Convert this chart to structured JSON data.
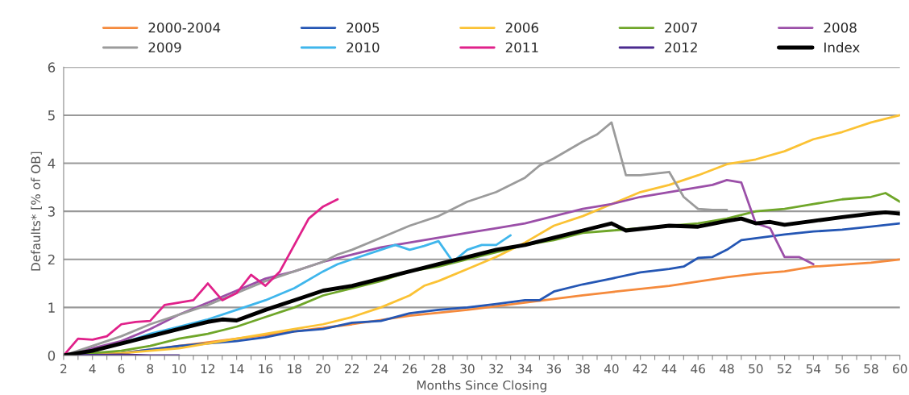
{
  "chart_data": {
    "type": "line",
    "xlabel": "Months Since Closing",
    "ylabel": "Defaults* [% of OB]",
    "xlim": [
      2,
      60
    ],
    "ylim": [
      0,
      6
    ],
    "yticks": [
      0,
      1,
      2,
      3,
      4,
      5,
      6
    ],
    "xticks": [
      2,
      {
        "value": 3,
        "label": null
      },
      4,
      {
        "value": 5,
        "label": null
      },
      6,
      {
        "value": 7,
        "label": null
      },
      8,
      {
        "value": 9,
        "label": null
      },
      10,
      {
        "value": 11,
        "label": null
      },
      12,
      {
        "value": 13,
        "label": null
      },
      14,
      {
        "value": 15,
        "label": null
      },
      16,
      {
        "value": 17,
        "label": null
      },
      18,
      {
        "value": 19,
        "label": null
      },
      20,
      {
        "value": 21,
        "label": null
      },
      22,
      {
        "value": 23,
        "label": null
      },
      24,
      {
        "value": 25,
        "label": null
      },
      26,
      {
        "value": 27,
        "label": null
      },
      28,
      {
        "value": 29,
        "label": null
      },
      30,
      {
        "value": 31,
        "label": null
      },
      32,
      {
        "value": 33,
        "label": null
      },
      34,
      {
        "value": 35,
        "label": null
      },
      36,
      {
        "value": 37,
        "label": null
      },
      38,
      {
        "value": 39,
        "label": null
      },
      40,
      {
        "value": 41,
        "label": null
      },
      42,
      {
        "value": 43,
        "label": null
      },
      44,
      {
        "value": 45,
        "label": null
      },
      46,
      {
        "value": 47,
        "label": null
      },
      48,
      {
        "value": 49,
        "label": null
      },
      50,
      {
        "value": 51,
        "label": null
      },
      52,
      {
        "value": 53,
        "label": null
      },
      54,
      {
        "value": 55,
        "label": null
      },
      56,
      {
        "value": 57,
        "label": null
      },
      58,
      {
        "value": 59,
        "label": null
      },
      60
    ],
    "grid": "y",
    "legend": "top",
    "marker": "none",
    "line_style": "solid",
    "series": [
      {
        "name": "2000-2004",
        "color": "#f58a3c",
        "x": [
          2,
          6,
          10,
          14,
          18,
          22,
          26,
          30,
          34,
          38,
          40,
          44,
          48,
          50,
          52,
          54,
          58,
          60
        ],
        "values": [
          0,
          0.05,
          0.2,
          0.35,
          0.5,
          0.65,
          0.83,
          0.95,
          1.1,
          1.25,
          1.32,
          1.45,
          1.63,
          1.7,
          1.75,
          1.85,
          1.93,
          2.0
        ]
      },
      {
        "name": "2005",
        "color": "#2456b4",
        "x": [
          2,
          6,
          10,
          14,
          16,
          18,
          20,
          22,
          24,
          26,
          28,
          30,
          32,
          34,
          35,
          36,
          38,
          40,
          42,
          44,
          45,
          46,
          47,
          48,
          49,
          52,
          54,
          56,
          58,
          60
        ],
        "values": [
          0,
          0.05,
          0.2,
          0.3,
          0.38,
          0.5,
          0.55,
          0.68,
          0.72,
          0.88,
          0.95,
          1.0,
          1.07,
          1.15,
          1.15,
          1.33,
          1.48,
          1.6,
          1.73,
          1.8,
          1.85,
          2.03,
          2.05,
          2.2,
          2.4,
          2.52,
          2.58,
          2.62,
          2.68,
          2.75
        ]
      },
      {
        "name": "2006",
        "color": "#fbc234",
        "x": [
          2,
          6,
          10,
          14,
          18,
          20,
          22,
          24,
          26,
          27,
          28,
          30,
          32,
          34,
          36,
          38,
          40,
          42,
          44,
          46,
          48,
          50,
          52,
          54,
          56,
          58,
          60
        ],
        "values": [
          0,
          0.05,
          0.15,
          0.35,
          0.55,
          0.65,
          0.8,
          1.0,
          1.25,
          1.45,
          1.55,
          1.8,
          2.05,
          2.35,
          2.7,
          2.9,
          3.15,
          3.4,
          3.55,
          3.75,
          3.98,
          4.08,
          4.25,
          4.5,
          4.65,
          4.85,
          5.0
        ]
      },
      {
        "name": "2007",
        "color": "#6fa629",
        "x": [
          2,
          6,
          8,
          10,
          12,
          14,
          16,
          18,
          20,
          22,
          24,
          26,
          28,
          30,
          32,
          34,
          36,
          38,
          40,
          42,
          44,
          46,
          48,
          50,
          52,
          54,
          56,
          58,
          59,
          60
        ],
        "values": [
          0,
          0.1,
          0.2,
          0.35,
          0.45,
          0.6,
          0.8,
          1.0,
          1.25,
          1.4,
          1.55,
          1.75,
          1.85,
          2.0,
          2.15,
          2.3,
          2.4,
          2.55,
          2.6,
          2.65,
          2.7,
          2.75,
          2.85,
          3.0,
          3.05,
          3.15,
          3.25,
          3.3,
          3.38,
          3.2
        ]
      },
      {
        "name": "2008",
        "color": "#9b4fa8",
        "x": [
          2,
          4,
          6,
          8,
          10,
          12,
          14,
          16,
          18,
          20,
          22,
          24,
          26,
          28,
          30,
          32,
          34,
          36,
          38,
          40,
          42,
          44,
          46,
          47,
          48,
          49,
          50,
          51,
          52,
          53,
          54
        ],
        "values": [
          0,
          0.15,
          0.3,
          0.55,
          0.85,
          1.1,
          1.35,
          1.6,
          1.75,
          1.95,
          2.1,
          2.25,
          2.35,
          2.45,
          2.55,
          2.65,
          2.75,
          2.9,
          3.05,
          3.15,
          3.3,
          3.4,
          3.5,
          3.55,
          3.65,
          3.6,
          2.75,
          2.65,
          2.05,
          2.05,
          1.9
        ]
      },
      {
        "name": "2009",
        "color": "#9b9b9b",
        "x": [
          2,
          4,
          6,
          8,
          10,
          12,
          14,
          16,
          18,
          20,
          21,
          22,
          24,
          26,
          28,
          30,
          32,
          34,
          35,
          36,
          38,
          39,
          40,
          41,
          42,
          44,
          45,
          46,
          47,
          48
        ],
        "values": [
          0,
          0.2,
          0.4,
          0.65,
          0.85,
          1.05,
          1.3,
          1.55,
          1.75,
          1.95,
          2.1,
          2.2,
          2.45,
          2.7,
          2.9,
          3.2,
          3.4,
          3.7,
          3.95,
          4.1,
          4.45,
          4.6,
          4.85,
          3.75,
          3.75,
          3.82,
          3.3,
          3.05,
          3.03,
          3.03
        ]
      },
      {
        "name": "2010",
        "color": "#3fb6ec",
        "x": [
          2,
          4,
          6,
          8,
          10,
          12,
          14,
          16,
          18,
          20,
          21,
          22,
          24,
          25,
          26,
          27,
          28,
          29,
          30,
          31,
          32,
          33
        ],
        "values": [
          0,
          0.1,
          0.25,
          0.45,
          0.6,
          0.75,
          0.95,
          1.15,
          1.4,
          1.75,
          1.9,
          2.0,
          2.2,
          2.3,
          2.2,
          2.28,
          2.38,
          1.95,
          2.2,
          2.3,
          2.3,
          2.5
        ]
      },
      {
        "name": "2011",
        "color": "#e0218a",
        "x": [
          2,
          3,
          4,
          5,
          6,
          7,
          8,
          9,
          10,
          11,
          12,
          13,
          14,
          15,
          16,
          17,
          18,
          19,
          20,
          21
        ],
        "values": [
          0,
          0.35,
          0.33,
          0.4,
          0.65,
          0.7,
          0.72,
          1.05,
          1.1,
          1.15,
          1.5,
          1.15,
          1.3,
          1.68,
          1.45,
          1.75,
          2.3,
          2.85,
          3.1,
          3.25
        ]
      },
      {
        "name": "2012",
        "color": "#4b2a8f",
        "x": [
          2,
          6,
          8,
          10
        ],
        "values": [
          0,
          0.02,
          0,
          0
        ]
      },
      {
        "name": "Index",
        "color": "#000000",
        "x": [
          2,
          4,
          6,
          8,
          10,
          12,
          13,
          14,
          16,
          18,
          20,
          22,
          24,
          26,
          28,
          30,
          32,
          34,
          36,
          38,
          40,
          41,
          44,
          46,
          48,
          49,
          50,
          51,
          52,
          54,
          56,
          58,
          59,
          60
        ],
        "values": [
          0,
          0.1,
          0.25,
          0.4,
          0.55,
          0.7,
          0.75,
          0.73,
          0.95,
          1.15,
          1.35,
          1.45,
          1.6,
          1.75,
          1.9,
          2.05,
          2.2,
          2.3,
          2.45,
          2.6,
          2.75,
          2.6,
          2.7,
          2.68,
          2.8,
          2.85,
          2.75,
          2.78,
          2.72,
          2.8,
          2.88,
          2.95,
          2.98,
          2.95
        ]
      }
    ]
  }
}
